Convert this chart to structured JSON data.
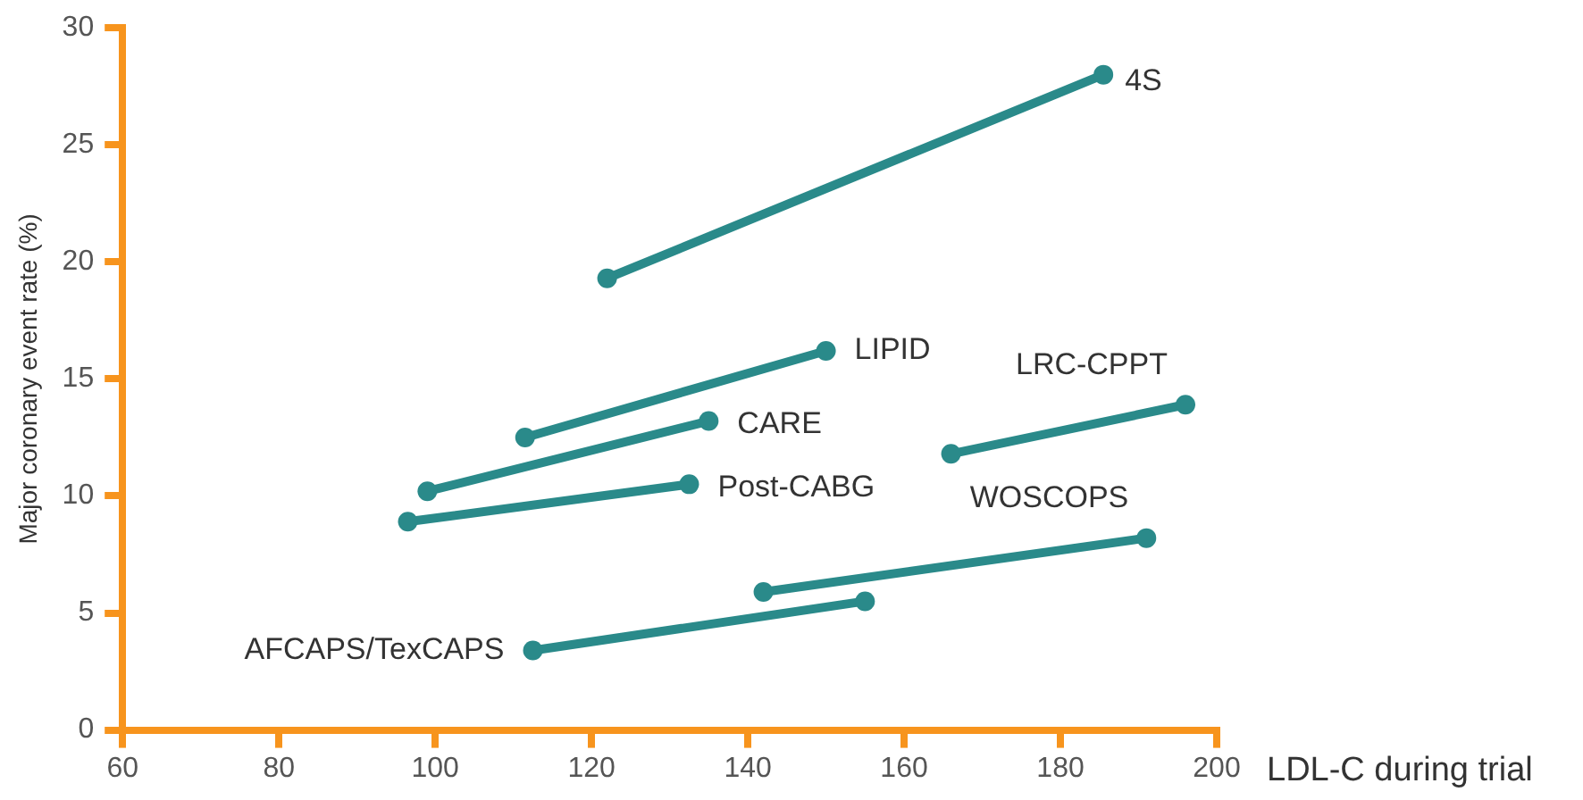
{
  "chart_data": {
    "type": "line",
    "xlabel": "LDL-C during trial",
    "ylabel": "Major coronary event rate (%)",
    "xlim": [
      60,
      200
    ],
    "xticks": [
      60,
      80,
      100,
      120,
      140,
      160,
      180,
      200
    ],
    "ylim": [
      0,
      30
    ],
    "yticks": [
      0,
      5,
      10,
      15,
      20,
      25,
      30
    ],
    "grid": false,
    "legend": false,
    "marker": "circle",
    "line_style": "solid",
    "series": [
      {
        "name": "4S",
        "color": "#2a8a8a",
        "x": [
          122,
          185.5
        ],
        "values": [
          19.3,
          28.0
        ]
      },
      {
        "name": "LIPID",
        "color": "#2a8a8a",
        "x": [
          111.5,
          150
        ],
        "values": [
          12.5,
          16.2
        ]
      },
      {
        "name": "CARE",
        "color": "#2a8a8a",
        "x": [
          99,
          135
        ],
        "values": [
          10.2,
          13.2
        ]
      },
      {
        "name": "Post-CABG",
        "color": "#2a8a8a",
        "x": [
          96.5,
          132.5
        ],
        "values": [
          8.9,
          10.5
        ]
      },
      {
        "name": "LRC-CPPT",
        "color": "#2a8a8a",
        "x": [
          166,
          196
        ],
        "values": [
          11.8,
          13.9
        ]
      },
      {
        "name": "WOSCOPS",
        "color": "#2a8a8a",
        "x": [
          142,
          191
        ],
        "values": [
          5.9,
          8.2
        ]
      },
      {
        "name": "AFCAPS/TexCAPS",
        "color": "#2a8a8a",
        "x": [
          112.5,
          155
        ],
        "values": [
          3.4,
          5.5
        ]
      }
    ]
  }
}
